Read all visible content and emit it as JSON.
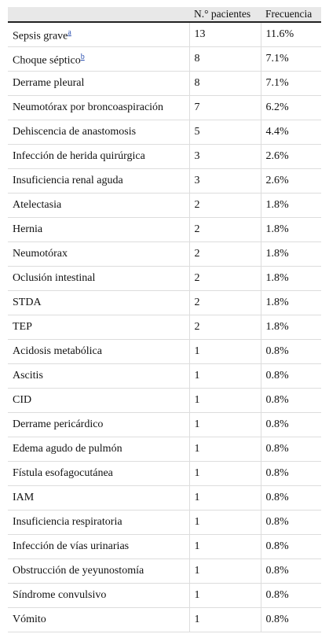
{
  "table": {
    "header": [
      null,
      "N.° pacientes",
      "Frecuencia"
    ],
    "rows": [
      {
        "name": "Sepsis grave",
        "note": "a",
        "patients": 13,
        "frequency": "11.6%"
      },
      {
        "name": "Choque séptico",
        "note": "b",
        "patients": 8,
        "frequency": "7.1%"
      },
      {
        "name": "Derrame pleural",
        "patients": 8,
        "frequency": "7.1%"
      },
      {
        "name": "Neumotórax por broncoaspiración",
        "patients": 7,
        "frequency": "6.2%"
      },
      {
        "name": "Dehiscencia de anastomosis",
        "patients": 5,
        "frequency": "4.4%"
      },
      {
        "name": "Infección de herida quirúrgica",
        "patients": 3,
        "frequency": "2.6%"
      },
      {
        "name": "Insuficiencia renal aguda",
        "patients": 3,
        "frequency": "2.6%"
      },
      {
        "name": "Atelectasia",
        "patients": 2,
        "frequency": "1.8%"
      },
      {
        "name": "Hernia",
        "patients": 2,
        "frequency": "1.8%"
      },
      {
        "name": "Neumotórax",
        "patients": 2,
        "frequency": "1.8%"
      },
      {
        "name": "Oclusión intestinal",
        "patients": 2,
        "frequency": "1.8%"
      },
      {
        "name": "STDA",
        "patients": 2,
        "frequency": "1.8%"
      },
      {
        "name": "TEP",
        "patients": 2,
        "frequency": "1.8%"
      },
      {
        "name": "Acidosis metabólica",
        "patients": 1,
        "frequency": "0.8%"
      },
      {
        "name": "Ascitis",
        "patients": 1,
        "frequency": "0.8%"
      },
      {
        "name": "CID",
        "patients": 1,
        "frequency": "0.8%"
      },
      {
        "name": "Derrame pericárdico",
        "patients": 1,
        "frequency": "0.8%"
      },
      {
        "name": "Edema agudo de pulmón",
        "patients": 1,
        "frequency": "0.8%"
      },
      {
        "name": "Fístula esofagocutánea",
        "patients": 1,
        "frequency": "0.8%"
      },
      {
        "name": "IAM",
        "patients": 1,
        "frequency": "0.8%"
      },
      {
        "name": "Insuficiencia respiratoria",
        "patients": 1,
        "frequency": "0.8%"
      },
      {
        "name": "Infección de vías urinarias",
        "patients": 1,
        "frequency": "0.8%"
      },
      {
        "name": "Obstrucción de yeyunostomía",
        "patients": 1,
        "frequency": "0.8%"
      },
      {
        "name": "Síndrome convulsivo",
        "patients": 1,
        "frequency": "0.8%"
      },
      {
        "name": "Vómito",
        "patients": 1,
        "frequency": "0.8%"
      }
    ]
  }
}
